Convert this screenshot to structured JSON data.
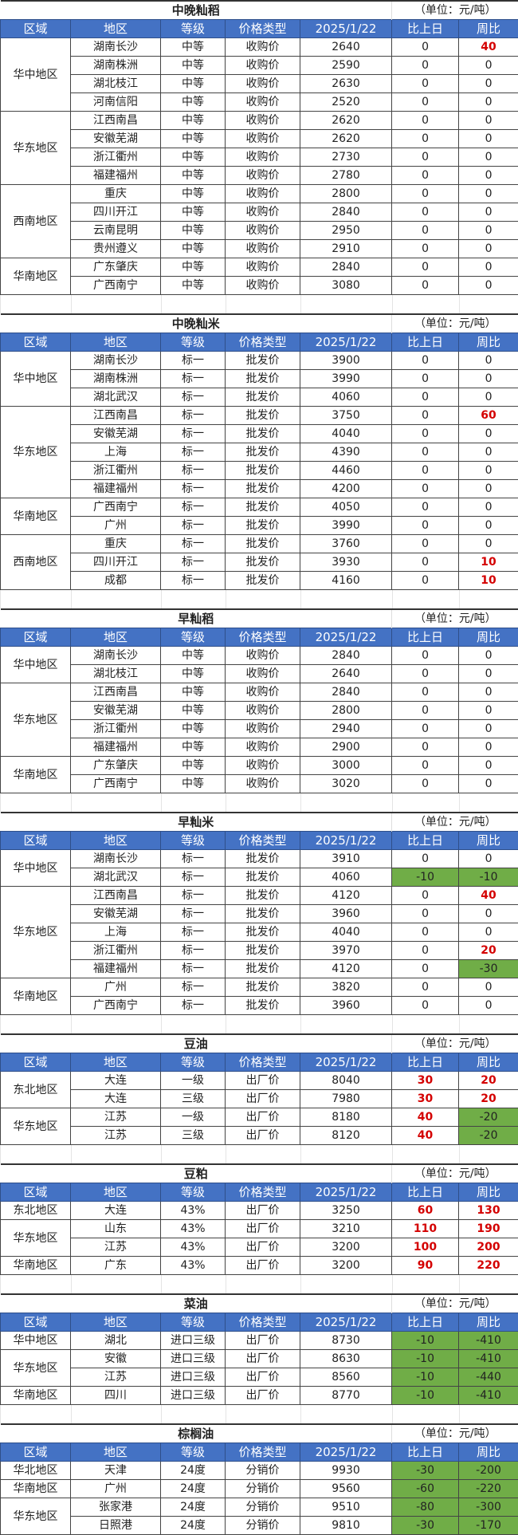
{
  "headers": [
    "区域",
    "地区",
    "等级",
    "价格类型",
    "2025/1/22",
    "比上日",
    "周比"
  ],
  "unit": "（单位：元/吨）",
  "colors": {
    "header_bg": "#4472C4",
    "negative_bg": "#70AD47",
    "positive_text": "#D40000"
  },
  "tables": [
    {
      "title": "中晚籼稻",
      "groups": [
        {
          "region": "华中地区",
          "rows": [
            [
              "湖南长沙",
              "中等",
              "收购价",
              "2640",
              "0",
              "40"
            ],
            [
              "湖南株洲",
              "中等",
              "收购价",
              "2590",
              "0",
              "0"
            ],
            [
              "湖北枝江",
              "中等",
              "收购价",
              "2630",
              "0",
              "0"
            ],
            [
              "河南信阳",
              "中等",
              "收购价",
              "2520",
              "0",
              "0"
            ]
          ]
        },
        {
          "region": "华东地区",
          "rows": [
            [
              "江西南昌",
              "中等",
              "收购价",
              "2620",
              "0",
              "0"
            ],
            [
              "安徽芜湖",
              "中等",
              "收购价",
              "2620",
              "0",
              "0"
            ],
            [
              "浙江衢州",
              "中等",
              "收购价",
              "2730",
              "0",
              "0"
            ],
            [
              "福建福州",
              "中等",
              "收购价",
              "2780",
              "0",
              "0"
            ]
          ]
        },
        {
          "region": "西南地区",
          "rows": [
            [
              "重庆",
              "中等",
              "收购价",
              "2800",
              "0",
              "0"
            ],
            [
              "四川开江",
              "中等",
              "收购价",
              "2840",
              "0",
              "0"
            ],
            [
              "云南昆明",
              "中等",
              "收购价",
              "2950",
              "0",
              "0"
            ],
            [
              "贵州遵义",
              "中等",
              "收购价",
              "2910",
              "0",
              "0"
            ]
          ]
        },
        {
          "region": "华南地区",
          "rows": [
            [
              "广东肇庆",
              "中等",
              "收购价",
              "2840",
              "0",
              "0"
            ],
            [
              "广西南宁",
              "中等",
              "收购价",
              "3080",
              "0",
              "0"
            ]
          ]
        }
      ]
    },
    {
      "title": "中晚籼米",
      "groups": [
        {
          "region": "华中地区",
          "rows": [
            [
              "湖南长沙",
              "标一",
              "批发价",
              "3900",
              "0",
              "0"
            ],
            [
              "湖南株洲",
              "标一",
              "批发价",
              "3990",
              "0",
              "0"
            ],
            [
              "湖北武汉",
              "标一",
              "批发价",
              "4060",
              "0",
              "0"
            ]
          ]
        },
        {
          "region": "华东地区",
          "rows": [
            [
              "江西南昌",
              "标一",
              "批发价",
              "3750",
              "0",
              "60"
            ],
            [
              "安徽芜湖",
              "标一",
              "批发价",
              "4040",
              "0",
              "0"
            ],
            [
              "上海",
              "标一",
              "批发价",
              "4390",
              "0",
              "0"
            ],
            [
              "浙江衢州",
              "标一",
              "批发价",
              "4460",
              "0",
              "0"
            ],
            [
              "福建福州",
              "标一",
              "批发价",
              "4200",
              "0",
              "0"
            ]
          ]
        },
        {
          "region": "华南地区",
          "rows": [
            [
              "广西南宁",
              "标一",
              "批发价",
              "4050",
              "0",
              "0"
            ],
            [
              "广州",
              "标一",
              "批发价",
              "3990",
              "0",
              "0"
            ]
          ]
        },
        {
          "region": "西南地区",
          "rows": [
            [
              "重庆",
              "标一",
              "批发价",
              "3760",
              "0",
              "0"
            ],
            [
              "四川开江",
              "标一",
              "批发价",
              "3930",
              "0",
              "10"
            ],
            [
              "成都",
              "标一",
              "批发价",
              "4160",
              "0",
              "10"
            ]
          ]
        }
      ]
    },
    {
      "title": "早籼稻",
      "groups": [
        {
          "region": "华中地区",
          "rows": [
            [
              "湖南长沙",
              "中等",
              "收购价",
              "2840",
              "0",
              "0"
            ],
            [
              "湖北枝江",
              "中等",
              "收购价",
              "2640",
              "0",
              "0"
            ]
          ]
        },
        {
          "region": "华东地区",
          "rows": [
            [
              "江西南昌",
              "中等",
              "收购价",
              "2840",
              "0",
              "0"
            ],
            [
              "安徽芜湖",
              "中等",
              "收购价",
              "2800",
              "0",
              "0"
            ],
            [
              "浙江衢州",
              "中等",
              "收购价",
              "2940",
              "0",
              "0"
            ],
            [
              "福建福州",
              "中等",
              "收购价",
              "2900",
              "0",
              "0"
            ]
          ]
        },
        {
          "region": "华南地区",
          "rows": [
            [
              "广东肇庆",
              "中等",
              "收购价",
              "3000",
              "0",
              "0"
            ],
            [
              "广西南宁",
              "中等",
              "收购价",
              "3020",
              "0",
              "0"
            ]
          ]
        }
      ]
    },
    {
      "title": "早籼米",
      "groups": [
        {
          "region": "华中地区",
          "rows": [
            [
              "湖南长沙",
              "标一",
              "批发价",
              "3910",
              "0",
              "0"
            ],
            [
              "湖北武汉",
              "标一",
              "批发价",
              "4060",
              "-10",
              "-10"
            ]
          ]
        },
        {
          "region": "华东地区",
          "rows": [
            [
              "江西南昌",
              "标一",
              "批发价",
              "4120",
              "0",
              "40"
            ],
            [
              "安徽芜湖",
              "标一",
              "批发价",
              "3960",
              "0",
              "0"
            ],
            [
              "上海",
              "标一",
              "批发价",
              "4040",
              "0",
              "0"
            ],
            [
              "浙江衢州",
              "标一",
              "批发价",
              "3970",
              "0",
              "20"
            ],
            [
              "福建福州",
              "标一",
              "批发价",
              "4120",
              "0",
              "-30"
            ]
          ]
        },
        {
          "region": "华南地区",
          "rows": [
            [
              "广州",
              "标一",
              "批发价",
              "3820",
              "0",
              "0"
            ],
            [
              "广西南宁",
              "标一",
              "批发价",
              "3960",
              "0",
              "0"
            ]
          ]
        }
      ]
    },
    {
      "title": "豆油",
      "groups": [
        {
          "region": "东北地区",
          "rows": [
            [
              "大连",
              "一级",
              "出厂价",
              "8040",
              "30",
              "20"
            ],
            [
              "大连",
              "三级",
              "出厂价",
              "7980",
              "30",
              "20"
            ]
          ]
        },
        {
          "region": "华东地区",
          "rows": [
            [
              "江苏",
              "一级",
              "出厂价",
              "8180",
              "40",
              "-20"
            ],
            [
              "江苏",
              "三级",
              "出厂价",
              "8120",
              "40",
              "-20"
            ]
          ]
        }
      ]
    },
    {
      "title": "豆粕",
      "groups": [
        {
          "region": "东北地区",
          "rows": [
            [
              "大连",
              "43%",
              "出厂价",
              "3250",
              "60",
              "130"
            ]
          ]
        },
        {
          "region": "华东地区",
          "rows": [
            [
              "山东",
              "43%",
              "出厂价",
              "3210",
              "110",
              "190"
            ],
            [
              "江苏",
              "43%",
              "出厂价",
              "3200",
              "100",
              "200"
            ]
          ]
        },
        {
          "region": "华南地区",
          "rows": [
            [
              "广东",
              "43%",
              "出厂价",
              "3200",
              "90",
              "220"
            ]
          ]
        }
      ]
    },
    {
      "title": "菜油",
      "groups": [
        {
          "region": "华中地区",
          "rows": [
            [
              "湖北",
              "进口三级",
              "出厂价",
              "8730",
              "-10",
              "-410"
            ]
          ]
        },
        {
          "region": "华东地区",
          "rows": [
            [
              "安徽",
              "进口三级",
              "出厂价",
              "8630",
              "-10",
              "-410"
            ],
            [
              "江苏",
              "进口三级",
              "出厂价",
              "8560",
              "-10",
              "-440"
            ]
          ]
        },
        {
          "region": "华南地区",
          "rows": [
            [
              "四川",
              "进口三级",
              "出厂价",
              "8770",
              "-10",
              "-410"
            ]
          ]
        }
      ]
    },
    {
      "title": "棕榈油",
      "groups": [
        {
          "region": "华北地区",
          "rows": [
            [
              "天津",
              "24度",
              "分销价",
              "9930",
              "-30",
              "-200"
            ]
          ]
        },
        {
          "region": "华南地区",
          "rows": [
            [
              "广州",
              "24度",
              "分销价",
              "9560",
              "-60",
              "-220"
            ]
          ]
        },
        {
          "region": "华东地区",
          "rows": [
            [
              "张家港",
              "24度",
              "分销价",
              "9510",
              "-80",
              "-300"
            ],
            [
              "日照港",
              "24度",
              "分销价",
              "9810",
              "-30",
              "-170"
            ]
          ]
        }
      ]
    }
  ]
}
